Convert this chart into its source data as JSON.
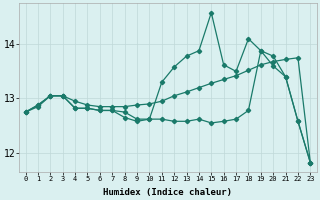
{
  "xlabel": "Humidex (Indice chaleur)",
  "background_color": "#daf0f0",
  "grid_color_major": "#c0d8d8",
  "grid_color_minor": "#d0e8e8",
  "line_color": "#1a7a6a",
  "xlim": [
    -0.5,
    23.5
  ],
  "ylim": [
    11.65,
    14.75
  ],
  "yticks": [
    12,
    13,
    14
  ],
  "xticks": [
    0,
    1,
    2,
    3,
    4,
    5,
    6,
    7,
    8,
    9,
    10,
    11,
    12,
    13,
    14,
    15,
    16,
    17,
    18,
    19,
    20,
    21,
    22,
    23
  ],
  "series1_x": [
    0,
    1,
    2,
    3,
    4,
    5,
    6,
    7,
    8,
    9,
    10,
    11,
    12,
    13,
    14,
    15,
    16,
    17,
    18,
    19,
    20,
    21,
    22,
    23
  ],
  "series1_y": [
    12.75,
    12.88,
    13.05,
    13.05,
    12.82,
    12.82,
    12.78,
    12.78,
    12.75,
    12.62,
    12.62,
    13.3,
    13.58,
    13.78,
    13.88,
    14.58,
    13.62,
    13.5,
    14.1,
    13.88,
    13.78,
    13.4,
    12.58,
    11.82
  ],
  "series2_x": [
    0,
    1,
    2,
    3,
    4,
    5,
    6,
    7,
    8,
    9,
    10,
    11,
    12,
    13,
    14,
    15,
    16,
    17,
    18,
    19,
    20,
    21,
    22,
    23
  ],
  "series2_y": [
    12.75,
    12.85,
    13.05,
    13.05,
    12.95,
    12.88,
    12.85,
    12.85,
    12.85,
    12.88,
    12.9,
    12.95,
    13.05,
    13.12,
    13.2,
    13.28,
    13.35,
    13.42,
    13.52,
    13.62,
    13.68,
    13.72,
    13.75,
    11.82
  ],
  "series3_x": [
    0,
    1,
    2,
    3,
    4,
    5,
    6,
    7,
    8,
    9,
    10,
    11,
    12,
    13,
    14,
    15,
    16,
    17,
    18,
    19,
    20,
    21,
    22,
    23
  ],
  "series3_y": [
    12.75,
    12.88,
    13.05,
    13.05,
    12.82,
    12.82,
    12.78,
    12.78,
    12.65,
    12.58,
    12.62,
    12.62,
    12.58,
    12.58,
    12.62,
    12.55,
    12.58,
    12.62,
    12.78,
    13.88,
    13.6,
    13.4,
    12.58,
    11.82
  ]
}
